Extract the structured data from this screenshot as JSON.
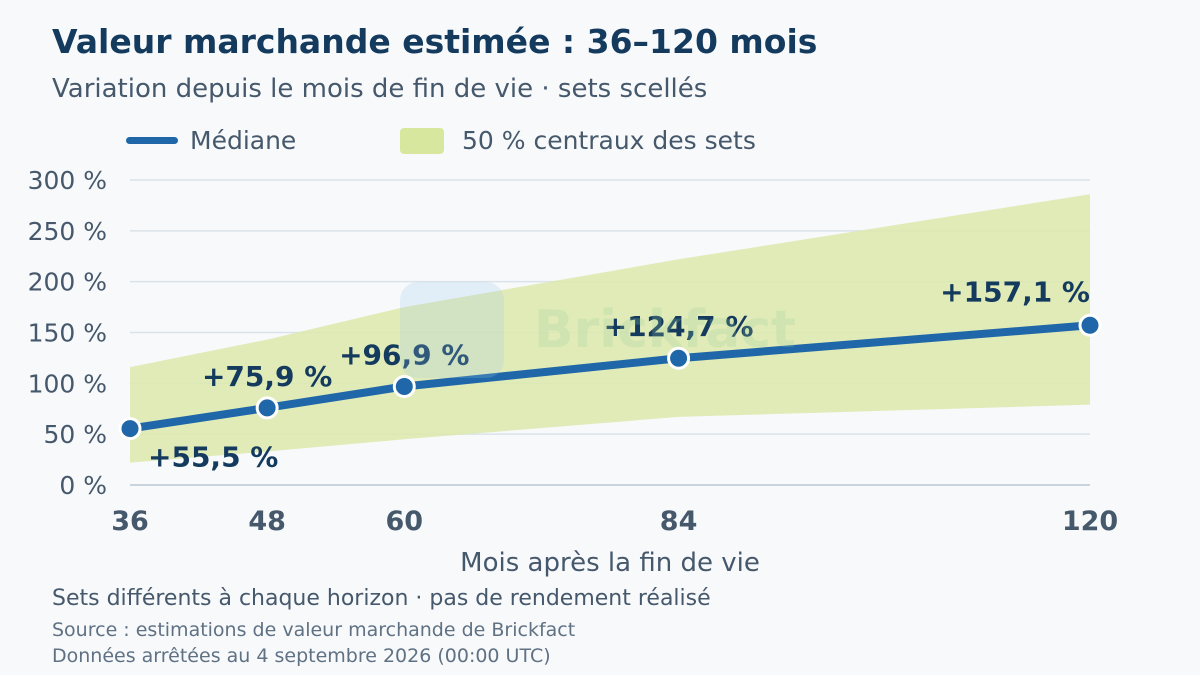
{
  "header": {
    "title": "Valeur marchande estimée : 36–120 mois",
    "subtitle": "Variation depuis le mois de fin de vie · sets scellés"
  },
  "legend": {
    "median_label": "Médiane",
    "band_label": "50 % centraux des sets"
  },
  "watermark": {
    "text": "Brickfact"
  },
  "footer": {
    "note": "Sets différents à chaque horizon · pas de rendement réalisé",
    "source": "Source : estimations de valeur marchande de Brickfact",
    "data_date": "Données arrêtées au 4 septembre 2026 (00:00 UTC)"
  },
  "colors": {
    "median": "#1f67a8",
    "band": "#dce9ac",
    "title": "#143a5e",
    "grid": "#dbe3ea",
    "label": "#143a5e",
    "tick": "#46586b"
  },
  "chart_data": {
    "type": "line",
    "x": [
      36,
      48,
      60,
      84,
      120
    ],
    "xlabel": "Mois après la fin de vie",
    "ylabel": "",
    "xlim": [
      36,
      120
    ],
    "ylim": [
      0,
      300
    ],
    "yticks": [
      0,
      50,
      100,
      150,
      200,
      250,
      300
    ],
    "ytick_labels": [
      "0 %",
      "50 %",
      "100 %",
      "150 %",
      "200 %",
      "250 %",
      "300 %"
    ],
    "xtick_labels": [
      "36",
      "48",
      "60",
      "84",
      "120"
    ],
    "grid": true,
    "legend_position": "top-left",
    "series": [
      {
        "name": "Médiane",
        "values": [
          55.5,
          75.9,
          96.9,
          124.7,
          157.1
        ],
        "labels": [
          "+55,5 %",
          "+75,9 %",
          "+96,9 %",
          "+124,7 %",
          "+157,1 %"
        ]
      }
    ],
    "band": {
      "name": "50 % centraux des sets",
      "lower": [
        22,
        33,
        45,
        67,
        79
      ],
      "upper": [
        116,
        143,
        175,
        222,
        286
      ]
    }
  }
}
